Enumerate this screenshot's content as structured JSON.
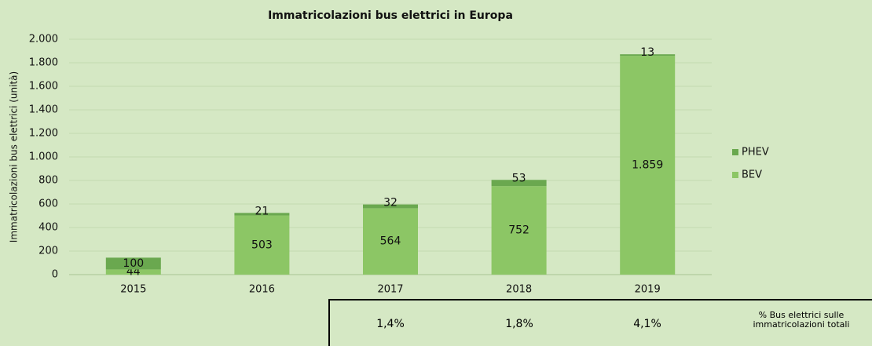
{
  "chart_data": {
    "type": "stacked_bar",
    "title": "Immatricolazioni bus elettrici in Europa",
    "y_label": "Immatricolazioni bus elettrici (unità)",
    "categories": [
      "2015",
      "2016",
      "2017",
      "2018",
      "2019"
    ],
    "series": [
      {
        "name": "BEV",
        "color": "#8cc665",
        "values": [
          44,
          503,
          564,
          752,
          1859
        ],
        "value_labels": [
          "44",
          "503",
          "564",
          "752",
          "1.859"
        ]
      },
      {
        "name": "PHEV",
        "color": "#6aa84f",
        "values": [
          100,
          21,
          32,
          53,
          13
        ]
      }
    ],
    "ylim": [
      0,
      2000
    ],
    "yticks": [
      0,
      {
        "value": 200,
        "label": "200"
      },
      400,
      600,
      800,
      {
        "value": 1000,
        "label": "1.000"
      },
      {
        "value": 1200,
        "label": "1.200"
      },
      {
        "value": 1400,
        "label": "1.400"
      },
      {
        "value": 1600,
        "label": "1.600"
      },
      {
        "value": 1800,
        "label": "1.800"
      },
      {
        "value": 2000,
        "label": "2.000"
      }
    ],
    "grid": true,
    "legend": "right"
  },
  "table": {
    "values": [
      "1,4%",
      "1,8%",
      "4,1%"
    ],
    "header": "% Bus elettrici sulle immatricolazioni totali"
  }
}
